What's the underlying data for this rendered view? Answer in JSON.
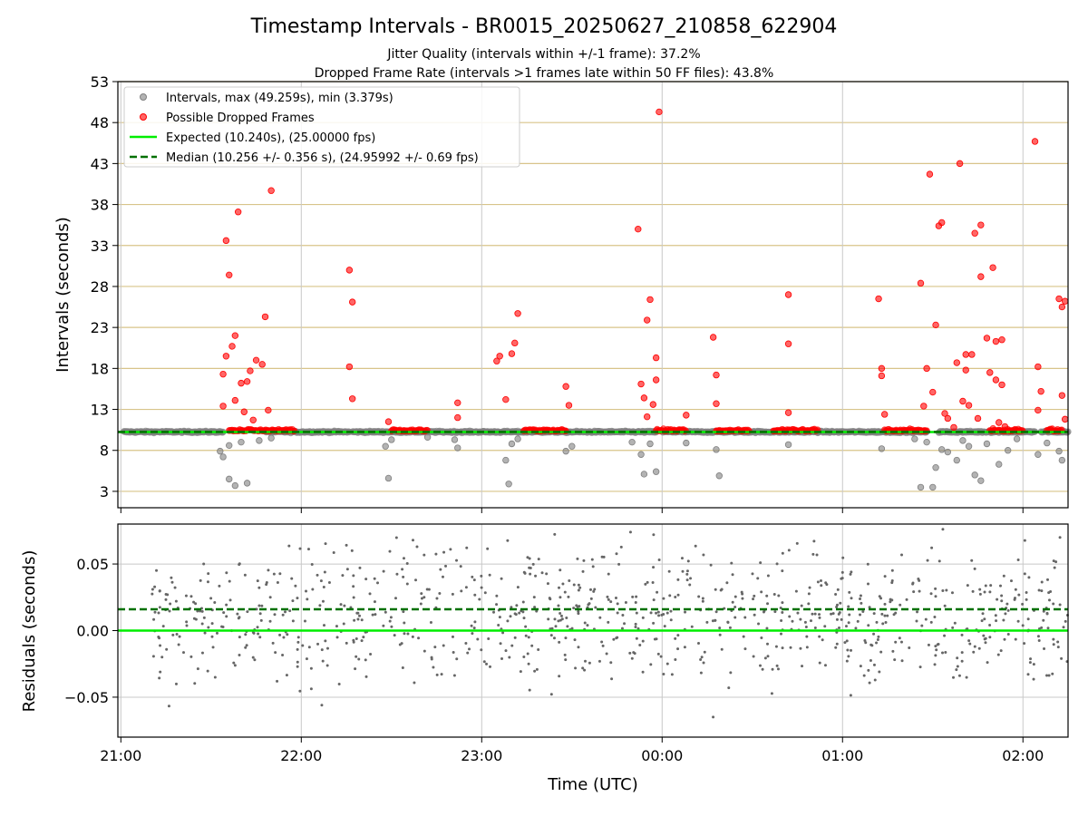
{
  "title": "Timestamp Intervals - BR0015_20250627_210858_622904",
  "subtitles": [
    "Jitter Quality (intervals within +/-1 frame): 37.2%",
    "Dropped Frame Rate (intervals >1 frames late within 50 FF files): 43.8%"
  ],
  "colors": {
    "interval_points": "#808080",
    "dropped_points": "#ff0000",
    "expected_line": "#00ee00",
    "median_line": "#007000",
    "hgrid_top": "#d8c48a",
    "grid": "#c8c8c8"
  },
  "chart_data": [
    {
      "type": "scatter",
      "ylabel": "Intervals (seconds)",
      "ylim": [
        1,
        53
      ],
      "yticks": [
        "3",
        "8",
        "13",
        "18",
        "23",
        "28",
        "33",
        "38",
        "43",
        "48",
        "53"
      ],
      "legend_position": "top-left",
      "legend": [
        "Intervals, max (49.259s), min (3.379s)",
        "Possible Dropped Frames",
        "Expected (10.240s), (25.00000 fps)",
        "Median (10.256 +/- 0.356 s), (24.95992 +/- 0.69 fps)"
      ],
      "expected": 10.24,
      "median": 10.256,
      "series": [
        {
          "name": "Intervals, max (49.259s), min (3.379s)",
          "points": [
            [
              "21:33",
              7.9
            ],
            [
              "21:34",
              7.2
            ],
            [
              "21:36",
              4.5
            ],
            [
              "21:38",
              3.7
            ],
            [
              "21:42",
              4.0
            ],
            [
              "21:36",
              8.6
            ],
            [
              "21:40",
              9.0
            ],
            [
              "21:46",
              9.2
            ],
            [
              "21:50",
              9.5
            ],
            [
              "22:28",
              8.5
            ],
            [
              "22:29",
              4.6
            ],
            [
              "22:30",
              9.3
            ],
            [
              "22:42",
              9.6
            ],
            [
              "22:51",
              9.3
            ],
            [
              "22:52",
              8.3
            ],
            [
              "23:08",
              6.8
            ],
            [
              "23:09",
              3.9
            ],
            [
              "23:10",
              8.8
            ],
            [
              "23:12",
              9.4
            ],
            [
              "23:28",
              7.9
            ],
            [
              "23:30",
              8.5
            ],
            [
              "23:50",
              9.0
            ],
            [
              "23:53",
              7.5
            ],
            [
              "23:54",
              5.1
            ],
            [
              "23:58",
              5.4
            ],
            [
              "23:56",
              8.8
            ],
            [
              "00:08",
              8.9
            ],
            [
              "00:18",
              8.1
            ],
            [
              "00:19",
              4.9
            ],
            [
              "00:42",
              8.7
            ],
            [
              "01:13",
              8.2
            ],
            [
              "01:24",
              9.4
            ],
            [
              "01:28",
              9.0
            ],
            [
              "01:26",
              3.5
            ],
            [
              "01:30",
              3.5
            ],
            [
              "01:31",
              5.9
            ],
            [
              "01:33",
              8.1
            ],
            [
              "01:35",
              7.8
            ],
            [
              "01:38",
              6.8
            ],
            [
              "01:40",
              9.2
            ],
            [
              "01:42",
              8.5
            ],
            [
              "01:44",
              5.0
            ],
            [
              "01:46",
              4.3
            ],
            [
              "01:48",
              8.8
            ],
            [
              "01:52",
              6.3
            ],
            [
              "01:55",
              8.0
            ],
            [
              "01:58",
              9.4
            ],
            [
              "02:05",
              7.5
            ],
            [
              "02:08",
              8.9
            ],
            [
              "02:12",
              7.9
            ],
            [
              "02:13",
              6.8
            ]
          ]
        },
        {
          "name": "Possible Dropped Frames",
          "points": [
            [
              "21:34",
              13.4
            ],
            [
              "21:34",
              17.3
            ],
            [
              "21:35",
              19.5
            ],
            [
              "21:35",
              33.6
            ],
            [
              "21:36",
              29.4
            ],
            [
              "21:37",
              20.7
            ],
            [
              "21:38",
              22.0
            ],
            [
              "21:38",
              14.1
            ],
            [
              "21:39",
              37.1
            ],
            [
              "21:40",
              16.2
            ],
            [
              "21:41",
              12.7
            ],
            [
              "21:42",
              16.4
            ],
            [
              "21:43",
              17.7
            ],
            [
              "21:44",
              11.7
            ],
            [
              "21:45",
              19.0
            ],
            [
              "21:47",
              18.5
            ],
            [
              "21:48",
              24.3
            ],
            [
              "21:49",
              12.9
            ],
            [
              "21:50",
              39.7
            ],
            [
              "22:16",
              30.0
            ],
            [
              "22:17",
              26.1
            ],
            [
              "22:16",
              18.2
            ],
            [
              "22:17",
              14.3
            ],
            [
              "22:29",
              11.5
            ],
            [
              "22:52",
              13.8
            ],
            [
              "22:52",
              12.0
            ],
            [
              "23:05",
              18.9
            ],
            [
              "23:06",
              19.5
            ],
            [
              "23:08",
              14.2
            ],
            [
              "23:10",
              19.8
            ],
            [
              "23:11",
              21.1
            ],
            [
              "23:12",
              24.7
            ],
            [
              "23:28",
              15.8
            ],
            [
              "23:29",
              13.5
            ],
            [
              "23:52",
              35.0
            ],
            [
              "23:53",
              16.1
            ],
            [
              "23:54",
              14.4
            ],
            [
              "23:55",
              12.1
            ],
            [
              "23:55",
              23.9
            ],
            [
              "23:56",
              26.4
            ],
            [
              "23:57",
              13.6
            ],
            [
              "23:58",
              19.3
            ],
            [
              "23:58",
              16.6
            ],
            [
              "23:59",
              49.3
            ],
            [
              "00:08",
              12.3
            ],
            [
              "00:17",
              21.8
            ],
            [
              "00:18",
              17.2
            ],
            [
              "00:18",
              13.7
            ],
            [
              "00:42",
              27.0
            ],
            [
              "00:42",
              21.0
            ],
            [
              "00:42",
              12.6
            ],
            [
              "01:12",
              26.5
            ],
            [
              "01:13",
              18.0
            ],
            [
              "01:13",
              17.1
            ],
            [
              "01:14",
              12.4
            ],
            [
              "01:26",
              28.4
            ],
            [
              "01:27",
              13.4
            ],
            [
              "01:28",
              18.0
            ],
            [
              "01:29",
              41.7
            ],
            [
              "01:30",
              15.1
            ],
            [
              "01:31",
              23.3
            ],
            [
              "01:32",
              35.4
            ],
            [
              "01:33",
              35.8
            ],
            [
              "01:34",
              12.5
            ],
            [
              "01:35",
              11.9
            ],
            [
              "01:37",
              10.8
            ],
            [
              "01:38",
              18.7
            ],
            [
              "01:39",
              43.0
            ],
            [
              "01:40",
              14.0
            ],
            [
              "01:41",
              17.8
            ],
            [
              "01:41",
              19.7
            ],
            [
              "01:42",
              13.5
            ],
            [
              "01:43",
              19.7
            ],
            [
              "01:44",
              34.5
            ],
            [
              "01:45",
              11.9
            ],
            [
              "01:46",
              29.2
            ],
            [
              "01:46",
              35.5
            ],
            [
              "01:48",
              21.7
            ],
            [
              "01:49",
              17.5
            ],
            [
              "01:50",
              30.3
            ],
            [
              "01:51",
              16.6
            ],
            [
              "01:51",
              21.3
            ],
            [
              "01:52",
              11.4
            ],
            [
              "01:53",
              16.0
            ],
            [
              "01:53",
              21.5
            ],
            [
              "01:54",
              10.9
            ],
            [
              "02:04",
              45.7
            ],
            [
              "02:05",
              18.2
            ],
            [
              "02:06",
              15.2
            ],
            [
              "02:05",
              12.9
            ],
            [
              "02:12",
              26.5
            ],
            [
              "02:13",
              25.5
            ],
            [
              "02:13",
              14.7
            ],
            [
              "02:14",
              26.2
            ],
            [
              "02:14",
              11.8
            ]
          ]
        }
      ]
    },
    {
      "type": "scatter",
      "ylabel": "Residuals (seconds)",
      "xlabel": "Time (UTC)",
      "ylim": [
        -0.08,
        0.08
      ],
      "yticks": [
        "−0.05",
        "0.00",
        "0.05"
      ],
      "xticks": [
        "21:00",
        "22:00",
        "23:00",
        "00:00",
        "01:00",
        "02:00"
      ],
      "xlim": [
        "20:59",
        "02:15"
      ],
      "expected": 0.0,
      "median": 0.016
    }
  ]
}
